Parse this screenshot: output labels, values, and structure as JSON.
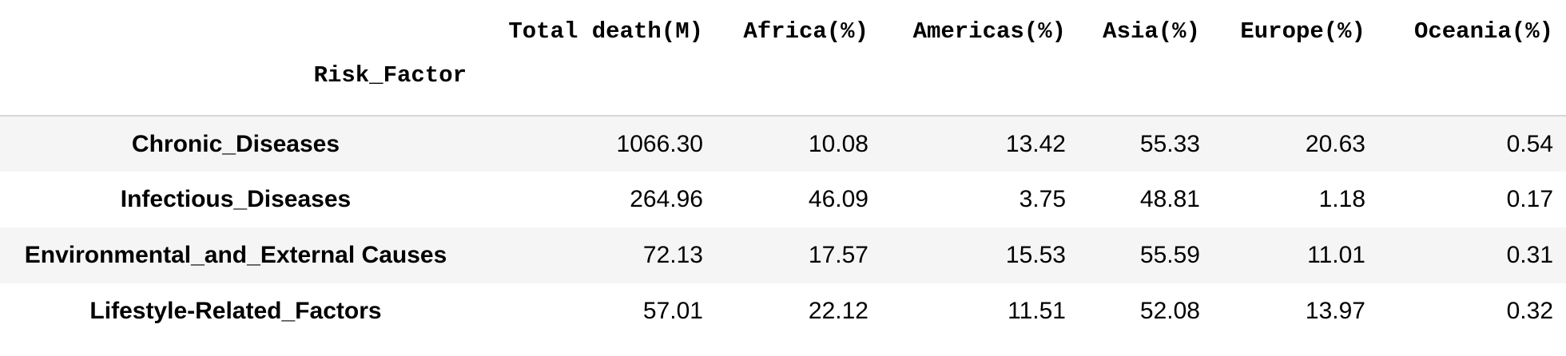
{
  "table": {
    "index_name": "Risk_Factor",
    "columns": [
      "Total death(M)",
      "Africa(%)",
      "Americas(%)",
      "Asia(%)",
      "Europe(%)",
      "Oceania(%)"
    ],
    "rows": [
      {
        "label": "Chronic_Diseases",
        "values": [
          "1066.30",
          "10.08",
          "13.42",
          "55.33",
          "20.63",
          "0.54"
        ]
      },
      {
        "label": "Infectious_Diseases",
        "values": [
          "264.96",
          "46.09",
          "3.75",
          "48.81",
          "1.18",
          "0.17"
        ]
      },
      {
        "label": "Environmental_and_External Causes",
        "values": [
          "72.13",
          "17.57",
          "15.53",
          "55.59",
          "11.01",
          "0.31"
        ]
      },
      {
        "label": "Lifestyle-Related_Factors",
        "values": [
          "57.01",
          "22.12",
          "11.51",
          "52.08",
          "13.97",
          "0.32"
        ]
      }
    ]
  }
}
